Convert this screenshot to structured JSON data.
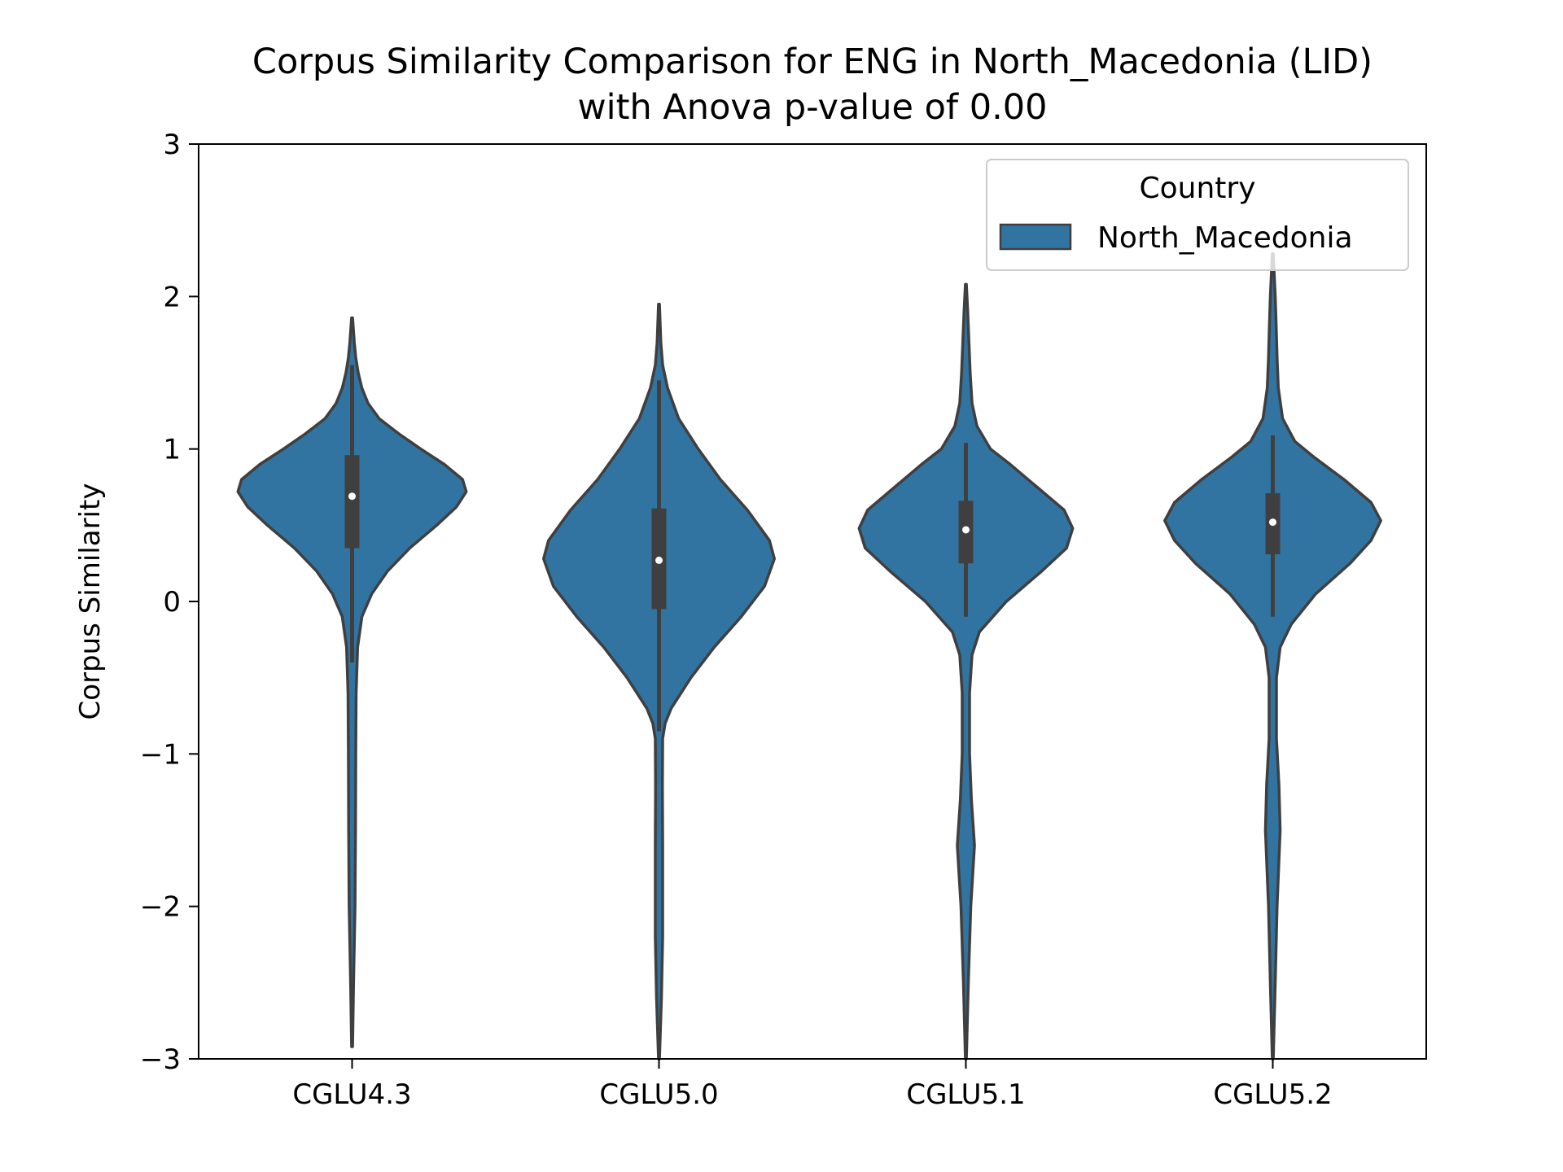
{
  "chart_data": {
    "type": "violin",
    "title_line1": "Corpus Similarity Comparison for ENG in North_Macedonia (LID)",
    "title_line2": "with Anova p-value of 0.00",
    "ylabel": "Corpus Similarity",
    "xlabel": "",
    "ylim": [
      -3,
      3
    ],
    "y_ticks": [
      "−3",
      "−2",
      "−1",
      "0",
      "1",
      "2",
      "3"
    ],
    "y_tick_values": [
      -3,
      -2,
      -1,
      0,
      1,
      2,
      3
    ],
    "categories": [
      "CGLU4.3",
      "CGLU5.0",
      "CGLU5.1",
      "CGLU5.2"
    ],
    "legend": {
      "title": "Country",
      "entries": [
        "North_Macedonia"
      ],
      "placement": "top-right"
    },
    "colors": {
      "violin_fill": "#3274a1",
      "violin_edge": "#3f3f3f",
      "box": "#3f3f3f",
      "median": "#ffffff"
    },
    "series": [
      {
        "name": "North_Macedonia",
        "violins": [
          {
            "category": "CGLU4.3",
            "min": -2.92,
            "max": 1.86,
            "q1": 0.35,
            "median": 0.69,
            "q3": 0.96,
            "whisker_low": -0.4,
            "whisker_high": 1.55,
            "density": [
              [
                -2.92,
                0.004
              ],
              [
                -2.5,
                0.012
              ],
              [
                -2.0,
                0.024
              ],
              [
                -1.5,
                0.028
              ],
              [
                -1.0,
                0.03
              ],
              [
                -0.6,
                0.033
              ],
              [
                -0.3,
                0.045
              ],
              [
                -0.1,
                0.08
              ],
              [
                0.05,
                0.16
              ],
              [
                0.2,
                0.29
              ],
              [
                0.35,
                0.47
              ],
              [
                0.5,
                0.69
              ],
              [
                0.62,
                0.85
              ],
              [
                0.72,
                0.93
              ],
              [
                0.8,
                0.9
              ],
              [
                0.9,
                0.75
              ],
              [
                1.0,
                0.56
              ],
              [
                1.1,
                0.38
              ],
              [
                1.2,
                0.22
              ],
              [
                1.3,
                0.13
              ],
              [
                1.4,
                0.08
              ],
              [
                1.5,
                0.05
              ],
              [
                1.6,
                0.03
              ],
              [
                1.7,
                0.018
              ],
              [
                1.86,
                0.004
              ]
            ]
          },
          {
            "category": "CGLU5.0",
            "min": -3.0,
            "max": 1.95,
            "q1": -0.05,
            "median": 0.27,
            "q3": 0.61,
            "whisker_low": -0.85,
            "whisker_high": 1.45,
            "density": [
              [
                -3.0,
                0.004
              ],
              [
                -2.6,
                0.02
              ],
              [
                -2.2,
                0.03
              ],
              [
                -1.6,
                0.03
              ],
              [
                -1.2,
                0.028
              ],
              [
                -0.9,
                0.03
              ],
              [
                -0.8,
                0.05
              ],
              [
                -0.7,
                0.1
              ],
              [
                -0.5,
                0.26
              ],
              [
                -0.3,
                0.45
              ],
              [
                -0.1,
                0.67
              ],
              [
                0.1,
                0.86
              ],
              [
                0.28,
                0.94
              ],
              [
                0.4,
                0.9
              ],
              [
                0.6,
                0.72
              ],
              [
                0.8,
                0.5
              ],
              [
                1.0,
                0.32
              ],
              [
                1.2,
                0.16
              ],
              [
                1.4,
                0.07
              ],
              [
                1.55,
                0.03
              ],
              [
                1.7,
                0.015
              ],
              [
                1.95,
                0.004
              ]
            ]
          },
          {
            "category": "CGLU5.1",
            "min": -3.0,
            "max": 2.08,
            "q1": 0.25,
            "median": 0.47,
            "q3": 0.66,
            "whisker_low": -0.1,
            "whisker_high": 1.04,
            "density": [
              [
                -3.0,
                0.004
              ],
              [
                -2.5,
                0.02
              ],
              [
                -2.0,
                0.04
              ],
              [
                -1.6,
                0.07
              ],
              [
                -1.3,
                0.045
              ],
              [
                -1.0,
                0.03
              ],
              [
                -0.6,
                0.03
              ],
              [
                -0.35,
                0.05
              ],
              [
                -0.2,
                0.11
              ],
              [
                0.0,
                0.33
              ],
              [
                0.2,
                0.62
              ],
              [
                0.35,
                0.82
              ],
              [
                0.48,
                0.87
              ],
              [
                0.6,
                0.8
              ],
              [
                0.75,
                0.58
              ],
              [
                0.9,
                0.36
              ],
              [
                1.0,
                0.2
              ],
              [
                1.15,
                0.09
              ],
              [
                1.3,
                0.05
              ],
              [
                1.5,
                0.035
              ],
              [
                1.7,
                0.025
              ],
              [
                1.9,
                0.015
              ],
              [
                2.08,
                0.004
              ]
            ]
          },
          {
            "category": "CGLU5.2",
            "min": -3.0,
            "max": 2.28,
            "q1": 0.31,
            "median": 0.52,
            "q3": 0.71,
            "whisker_low": -0.1,
            "whisker_high": 1.09,
            "density": [
              [
                -3.0,
                0.004
              ],
              [
                -2.5,
                0.02
              ],
              [
                -2.0,
                0.035
              ],
              [
                -1.5,
                0.06
              ],
              [
                -1.2,
                0.05
              ],
              [
                -0.9,
                0.03
              ],
              [
                -0.5,
                0.03
              ],
              [
                -0.3,
                0.06
              ],
              [
                -0.15,
                0.15
              ],
              [
                0.05,
                0.35
              ],
              [
                0.25,
                0.63
              ],
              [
                0.4,
                0.8
              ],
              [
                0.53,
                0.88
              ],
              [
                0.65,
                0.8
              ],
              [
                0.8,
                0.58
              ],
              [
                0.95,
                0.33
              ],
              [
                1.05,
                0.18
              ],
              [
                1.2,
                0.08
              ],
              [
                1.4,
                0.045
              ],
              [
                1.6,
                0.035
              ],
              [
                1.8,
                0.028
              ],
              [
                2.0,
                0.02
              ],
              [
                2.28,
                0.004
              ]
            ]
          }
        ]
      }
    ]
  }
}
